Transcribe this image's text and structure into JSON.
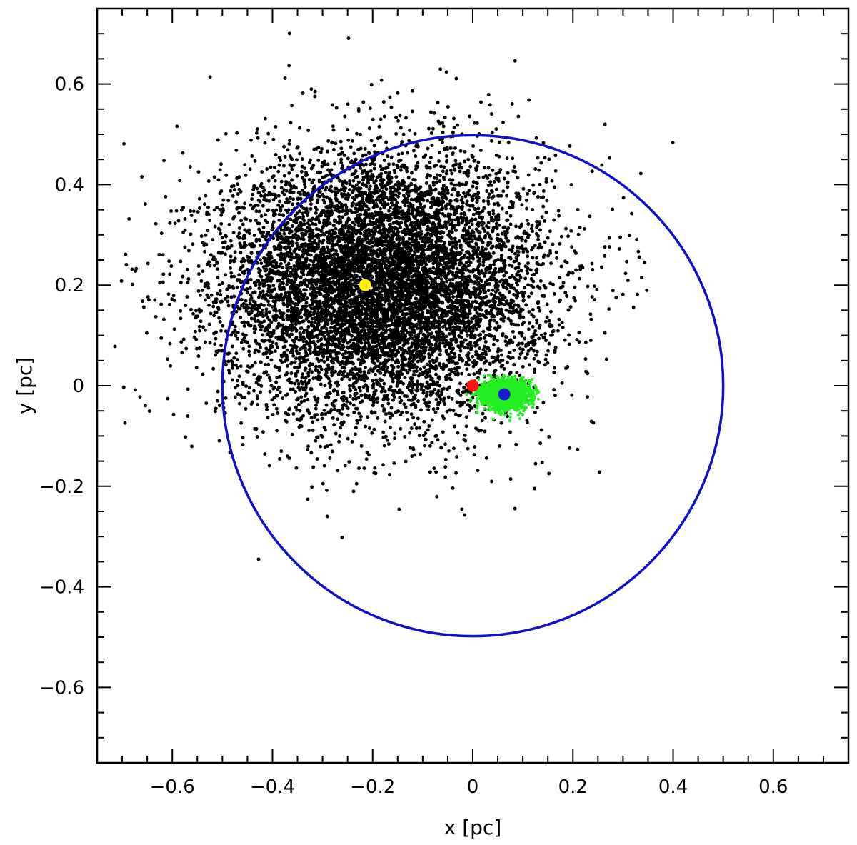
{
  "chart_data": {
    "type": "scatter",
    "title": "",
    "xlabel": "x [pc]",
    "ylabel": "y [pc]",
    "xlim": [
      -0.75,
      0.75
    ],
    "ylim": [
      -0.75,
      0.75
    ],
    "grid": false,
    "legend": "none",
    "x_ticks_major": [
      -0.6,
      -0.4,
      -0.2,
      0,
      0.2,
      0.4,
      0.6
    ],
    "y_ticks_major": [
      -0.6,
      -0.4,
      -0.2,
      0,
      0.2,
      0.4,
      0.6
    ],
    "x_tick_labels": [
      "−0.6",
      "−0.4",
      "−0.2",
      "0",
      "0.2",
      "0.4",
      "0.6"
    ],
    "y_tick_labels": [
      "−0.6",
      "−0.4",
      "−0.2",
      "0",
      "0.2",
      "0.4",
      "0.6"
    ],
    "minor_tick_step": 0.05,
    "circle": {
      "center": [
        0,
        0
      ],
      "radius": 0.5,
      "color": "#1010c8"
    },
    "clusters": [
      {
        "name": "black-cloud",
        "color": "#000000",
        "center": [
          -0.18,
          0.2
        ],
        "sigma": [
          0.16,
          0.13
        ],
        "count": 9000,
        "dot_radius_data": 0.0035
      },
      {
        "name": "green-cloud",
        "color": "#22ee22",
        "center": [
          0.065,
          -0.018
        ],
        "sigma": [
          0.022,
          0.013
        ],
        "count": 2500,
        "dot_radius_data": 0.003
      }
    ],
    "markers": [
      {
        "name": "yellow-marker",
        "x": -0.215,
        "y": 0.2,
        "color": "#ffee00"
      },
      {
        "name": "red-marker",
        "x": 0.0,
        "y": 0.0,
        "color": "#ff1010"
      },
      {
        "name": "blue-marker",
        "x": 0.063,
        "y": -0.017,
        "color": "#1a1ad8"
      }
    ]
  }
}
